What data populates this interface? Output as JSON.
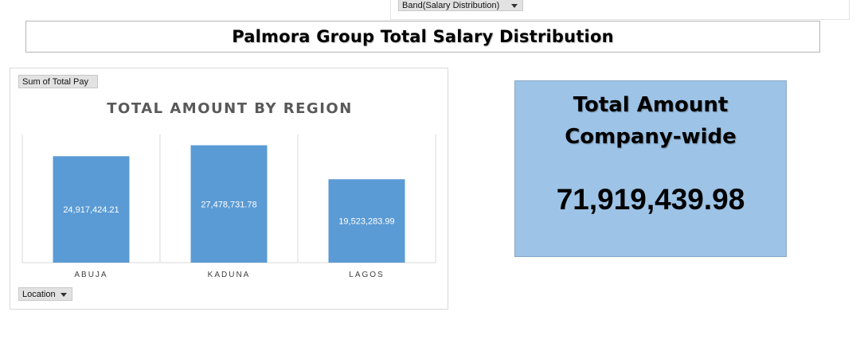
{
  "filters": {
    "band_label": "Band(Salary Distribution)",
    "values_label": "Sum of Total Pay",
    "axis_label": "Location"
  },
  "dashboard_title": "Palmora Group Total Salary Distribution",
  "kpi": {
    "title_line1": "Total Amount",
    "title_line2": "Company-wide",
    "value": "71,919,439.98"
  },
  "colors": {
    "bar": "#5b9bd5",
    "kpi_background": "#9dc3e6",
    "chart_title": "#595959"
  },
  "chart_data": {
    "type": "bar",
    "title": "TOTAL AMOUNT BY REGION",
    "categories": [
      "ABUJA",
      "KADUNA",
      "LAGOS"
    ],
    "values": [
      24917424.21,
      27478731.78,
      19523283.99
    ],
    "data_labels": [
      "24,917,424.21",
      "27,478,731.78",
      "19,523,283.99"
    ],
    "ylim": [
      0,
      30000000
    ],
    "grid": false,
    "legend": "none"
  }
}
